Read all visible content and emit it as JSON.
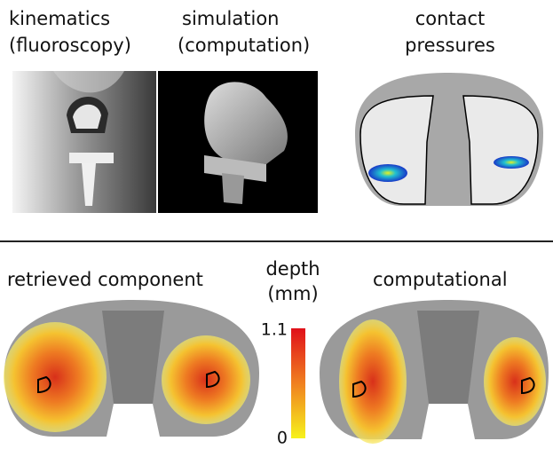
{
  "panels": {
    "kinematics": {
      "title": "kinematics",
      "subtitle": "(fluoroscopy)"
    },
    "simulation": {
      "title": "simulation",
      "subtitle": "(computation)"
    },
    "contact": {
      "title": "contact",
      "subtitle": "pressures"
    },
    "retrieved": {
      "title": "retrieved component"
    },
    "computational": {
      "title": "computational"
    }
  },
  "colorbar": {
    "title": "depth",
    "unit": "(mm)",
    "ticks": [
      1.1,
      0
    ]
  }
}
